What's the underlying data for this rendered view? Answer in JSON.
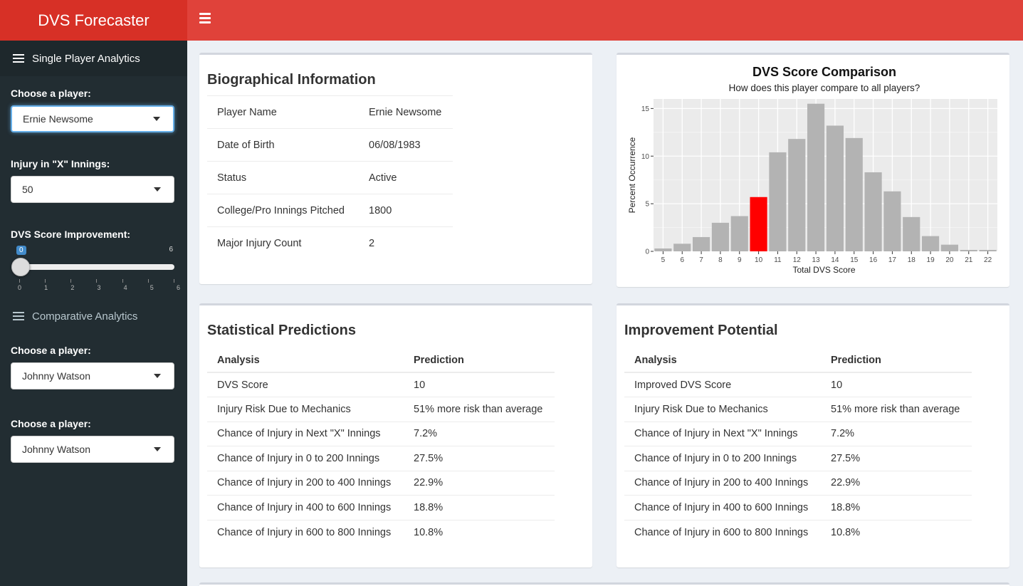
{
  "app": {
    "title": "DVS Forecaster"
  },
  "sidebar": {
    "single_section": "Single Player Analytics",
    "player_label": "Choose a player:",
    "player_value": "Ernie Newsome",
    "innings_label": "Injury in \"X\" Innings:",
    "innings_value": "50",
    "improve_label": "DVS Score Improvement:",
    "improve_value": "0",
    "improve_min": "0",
    "improve_max": "6",
    "improve_ticks": [
      "0",
      "1",
      "2",
      "3",
      "4",
      "5",
      "6"
    ],
    "comparative_section": "Comparative Analytics",
    "comp_player1_label": "Choose a player:",
    "comp_player1_value": "Johnny Watson",
    "comp_player2_label": "Choose a player:",
    "comp_player2_value": "Johnny Watson"
  },
  "bio": {
    "title": "Biographical Information",
    "rows": [
      {
        "label": "Player Name",
        "value": "Ernie Newsome"
      },
      {
        "label": "Date of Birth",
        "value": "06/08/1983"
      },
      {
        "label": "Status",
        "value": "Active"
      },
      {
        "label": "College/Pro Innings Pitched",
        "value": "1800"
      },
      {
        "label": "Major Injury Count",
        "value": "2"
      }
    ]
  },
  "stats": {
    "title": "Statistical Predictions",
    "col_analysis": "Analysis",
    "col_prediction": "Prediction",
    "rows": [
      {
        "label": "DVS Score",
        "value": "10"
      },
      {
        "label": "Injury Risk Due to Mechanics",
        "value": "51% more risk than average"
      },
      {
        "label": "Chance of Injury in Next \"X\" Innings",
        "value": "7.2%"
      },
      {
        "label": "Chance of Injury in 0 to 200 Innings",
        "value": "27.5%"
      },
      {
        "label": "Chance of Injury in 200 to 400 Innings",
        "value": "22.9%"
      },
      {
        "label": "Chance of Injury in 400 to 600 Innings",
        "value": "18.8%"
      },
      {
        "label": "Chance of Injury in 600 to 800 Innings",
        "value": "10.8%"
      }
    ]
  },
  "improve": {
    "title": "Improvement Potential",
    "col_analysis": "Analysis",
    "col_prediction": "Prediction",
    "rows": [
      {
        "label": "Improved DVS Score",
        "value": "10"
      },
      {
        "label": "Injury Risk Due to Mechanics",
        "value": "51% more risk than average"
      },
      {
        "label": "Chance of Injury in Next \"X\" Innings",
        "value": "7.2%"
      },
      {
        "label": "Chance of Injury in 0 to 200 Innings",
        "value": "27.5%"
      },
      {
        "label": "Chance of Injury in 200 to 400 Innings",
        "value": "22.9%"
      },
      {
        "label": "Chance of Injury in 400 to 600 Innings",
        "value": "18.8%"
      },
      {
        "label": "Chance of Injury in 600 to 800 Innings",
        "value": "10.8%"
      }
    ]
  },
  "colors": {
    "header": "#e0423a",
    "brand": "#d73026",
    "sidebar": "#222d32",
    "highlight_bar": "#ff0000",
    "bar": "#b3b3b3"
  },
  "chart_data": {
    "type": "bar",
    "title": "DVS Score Comparison",
    "subtitle": "How does this player compare to all players?",
    "xlabel": "Total DVS Score",
    "ylabel": "Percent Occurrence",
    "categories": [
      "5",
      "6",
      "7",
      "8",
      "9",
      "10",
      "11",
      "12",
      "13",
      "14",
      "15",
      "16",
      "17",
      "18",
      "19",
      "20",
      "21",
      "22"
    ],
    "values": [
      0.3,
      0.8,
      1.5,
      3.0,
      3.7,
      5.7,
      10.4,
      11.8,
      15.5,
      13.2,
      11.9,
      8.3,
      6.3,
      3.6,
      1.6,
      0.7,
      0.15,
      0.15
    ],
    "highlight_category": "10",
    "yticks": [
      0,
      5,
      10,
      15
    ],
    "ylim": [
      0,
      16
    ],
    "grid": true
  }
}
